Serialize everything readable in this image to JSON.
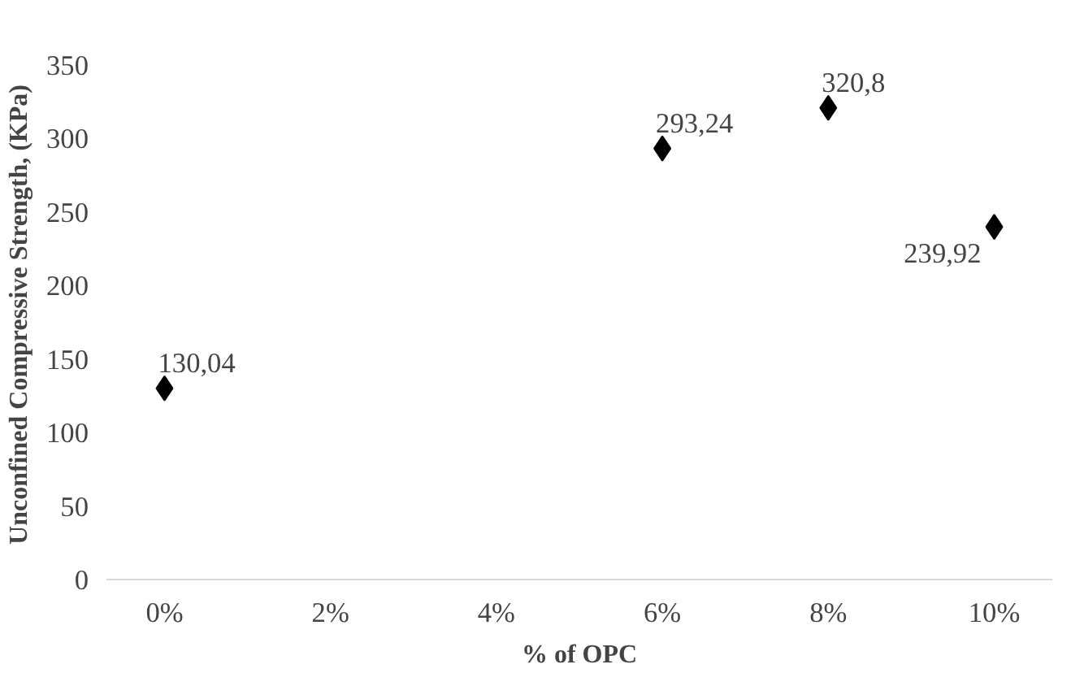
{
  "chart_data": {
    "type": "scatter",
    "xlabel": "% of OPC",
    "ylabel": "Unconfined Compressive Strength, (KPa)",
    "x": [
      0,
      6,
      8,
      10
    ],
    "series": [
      {
        "color": "#000000",
        "values": [
          130.04,
          293.24,
          320.8,
          239.92
        ],
        "value_labels": [
          "130,04",
          "293,24",
          "320,8",
          "239,92"
        ]
      }
    ],
    "marker": "diamond",
    "xlim": [
      -0.7,
      10.7
    ],
    "xticks": [
      {
        "value": 0,
        "label": "0%"
      },
      {
        "value": 2,
        "label": "2%"
      },
      {
        "value": 4,
        "label": "4%"
      },
      {
        "value": 6,
        "label": "6%"
      },
      {
        "value": 8,
        "label": "8%"
      },
      {
        "value": 10,
        "label": "10%"
      }
    ],
    "ylim": [
      0,
      350
    ],
    "yticks": [
      0,
      50,
      100,
      150,
      200,
      250,
      300,
      350
    ],
    "grid": false
  }
}
